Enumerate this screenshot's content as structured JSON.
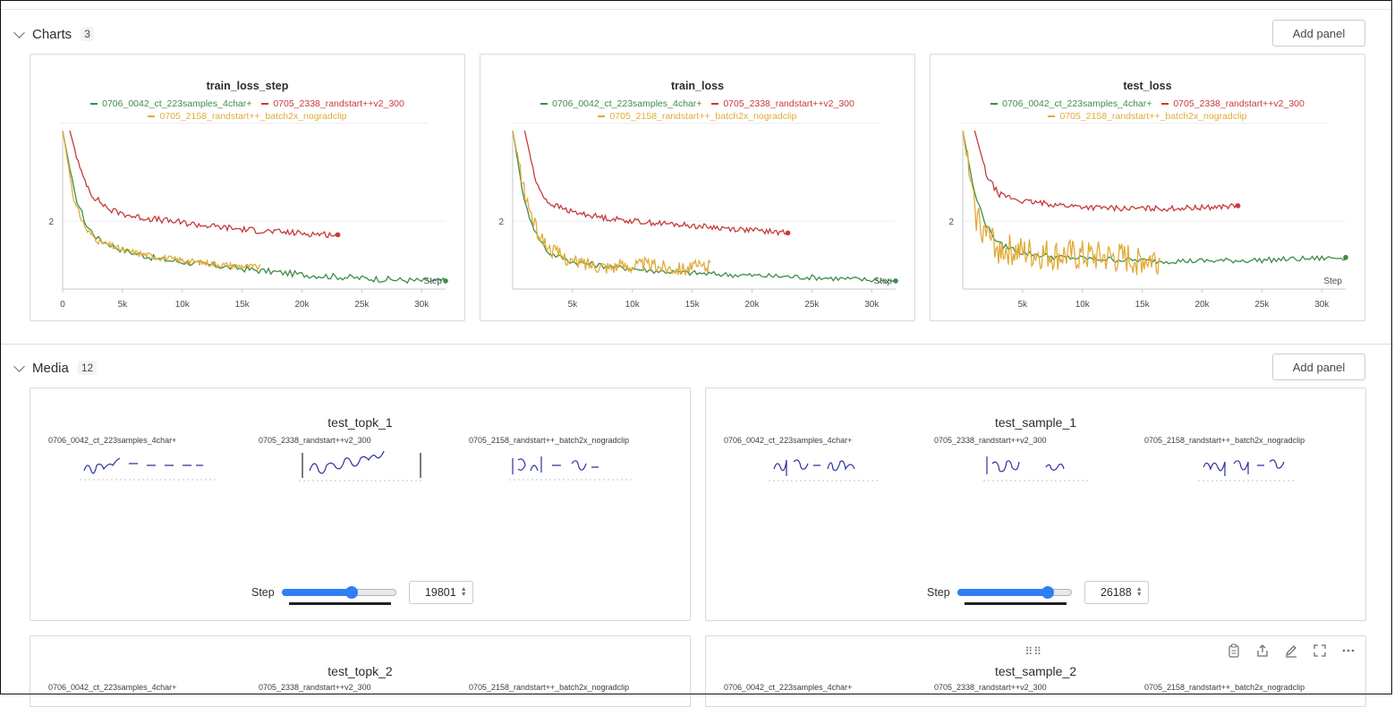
{
  "sections": {
    "charts": {
      "title": "Charts",
      "count": "3",
      "add_panel": "Add panel"
    },
    "media": {
      "title": "Media",
      "count": "12",
      "add_panel": "Add panel"
    }
  },
  "runs": {
    "green": {
      "name": "0706_0042_ct_223samples_4char+",
      "color": "#3e8c47"
    },
    "red": {
      "name": "0705_2338_randstart++v2_300",
      "color": "#c73a3a"
    },
    "yellow": {
      "name": "0705_2158_randstart++_batch2x_nogradclip",
      "color": "#e1ab39"
    }
  },
  "chart_data": [
    {
      "type": "line",
      "title": "train_loss_step",
      "xlabel": "Step",
      "ylabel": "",
      "xlim": [
        0,
        32000
      ],
      "ylim": [
        1.25,
        3.0
      ],
      "x_ticks": [
        "0",
        "5k",
        "10k",
        "15k",
        "20k",
        "25k",
        "30k"
      ],
      "y_ticks": [
        "2"
      ],
      "grid": true,
      "series": [
        {
          "name": "0706_0042_ct_223samples_4char+",
          "x": [
            0,
            1000,
            2000,
            3000,
            5000,
            8000,
            12000,
            16000,
            20000,
            25000,
            30000,
            32000
          ],
          "y": [
            3.0,
            2.3,
            1.95,
            1.8,
            1.68,
            1.58,
            1.52,
            1.46,
            1.41,
            1.37,
            1.34,
            1.34
          ]
        },
        {
          "name": "0705_2338_randstart++v2_300",
          "x": [
            600,
            1500,
            2500,
            4000,
            6000,
            9000,
            12000,
            15000,
            18000,
            21000,
            23000
          ],
          "y": [
            3.0,
            2.55,
            2.28,
            2.12,
            2.05,
            2.0,
            1.95,
            1.91,
            1.88,
            1.86,
            1.85
          ]
        },
        {
          "name": "0705_2158_randstart++_batch2x_nogradclip",
          "x": [
            0,
            1000,
            2000,
            3000,
            5000,
            8000,
            11000,
            14000,
            16500
          ],
          "y": [
            3.0,
            2.2,
            1.9,
            1.78,
            1.68,
            1.6,
            1.55,
            1.51,
            1.49
          ]
        }
      ]
    },
    {
      "type": "line",
      "title": "train_loss",
      "xlabel": "Step",
      "ylabel": "",
      "xlim": [
        0,
        32000
      ],
      "ylim": [
        1.25,
        3.0
      ],
      "x_ticks": [
        "5k",
        "10k",
        "15k",
        "20k",
        "25k",
        "30k"
      ],
      "y_ticks": [
        "2"
      ],
      "grid": true,
      "series": [
        {
          "name": "0706_0042_ct_223samples_4char+",
          "x": [
            0,
            1000,
            2000,
            3000,
            5000,
            8000,
            12000,
            16000,
            20000,
            25000,
            30000,
            32000
          ],
          "y": [
            3.0,
            2.2,
            1.85,
            1.65,
            1.55,
            1.5,
            1.45,
            1.42,
            1.4,
            1.38,
            1.35,
            1.34
          ]
        },
        {
          "name": "0705_2338_randstart++v2_300",
          "x": [
            1000,
            2000,
            3000,
            5000,
            8000,
            11000,
            14000,
            17000,
            20000,
            23000
          ],
          "y": [
            3.0,
            2.4,
            2.2,
            2.1,
            2.03,
            1.99,
            1.96,
            1.93,
            1.9,
            1.87
          ]
        },
        {
          "name": "0705_2158_randstart++_batch2x_nogradclip",
          "x": [
            0,
            1000,
            2000,
            3000,
            5000,
            8000,
            11000,
            14000,
            16500
          ],
          "y": [
            3.0,
            2.3,
            1.9,
            1.7,
            1.55,
            1.5,
            1.52,
            1.48,
            1.5
          ]
        }
      ]
    },
    {
      "type": "line",
      "title": "test_loss",
      "xlabel": "Step",
      "ylabel": "",
      "xlim": [
        0,
        32000
      ],
      "ylim": [
        1.25,
        3.0
      ],
      "x_ticks": [
        "5k",
        "10k",
        "15k",
        "20k",
        "25k",
        "30k"
      ],
      "y_ticks": [
        "2"
      ],
      "grid": true,
      "series": [
        {
          "name": "0706_0042_ct_223samples_4char+",
          "x": [
            0,
            1000,
            2000,
            3000,
            5000,
            8000,
            12000,
            16000,
            20000,
            25000,
            30000,
            32000
          ],
          "y": [
            3.0,
            2.3,
            1.95,
            1.75,
            1.65,
            1.6,
            1.58,
            1.56,
            1.56,
            1.57,
            1.59,
            1.6
          ]
        },
        {
          "name": "0705_2338_randstart++v2_300",
          "x": [
            1000,
            2000,
            3000,
            5000,
            8000,
            11000,
            14000,
            17000,
            20000,
            23000
          ],
          "y": [
            3.0,
            2.5,
            2.3,
            2.22,
            2.18,
            2.15,
            2.14,
            2.14,
            2.15,
            2.17
          ]
        },
        {
          "name": "0705_2158_randstart++_batch2x_nogradclip",
          "x": [
            0,
            1000,
            2000,
            3000,
            5000,
            8000,
            11000,
            14000,
            16500
          ],
          "y": [
            3.0,
            2.1,
            1.85,
            1.7,
            1.65,
            1.62,
            1.6,
            1.58,
            1.58
          ]
        }
      ]
    }
  ],
  "media_panels": [
    {
      "title": "test_topk_1",
      "step_label": "Step",
      "step_value": "19801",
      "slider_fraction": 0.61
    },
    {
      "title": "test_sample_1",
      "step_label": "Step",
      "step_value": "26188",
      "slider_fraction": 0.79
    },
    {
      "title": "test_topk_2"
    },
    {
      "title": "test_sample_2"
    }
  ],
  "icons": [
    "chevron-down-icon",
    "drag-handle-icon",
    "clipboard-icon",
    "share-icon",
    "edit-icon",
    "fullscreen-icon",
    "more-icon"
  ]
}
